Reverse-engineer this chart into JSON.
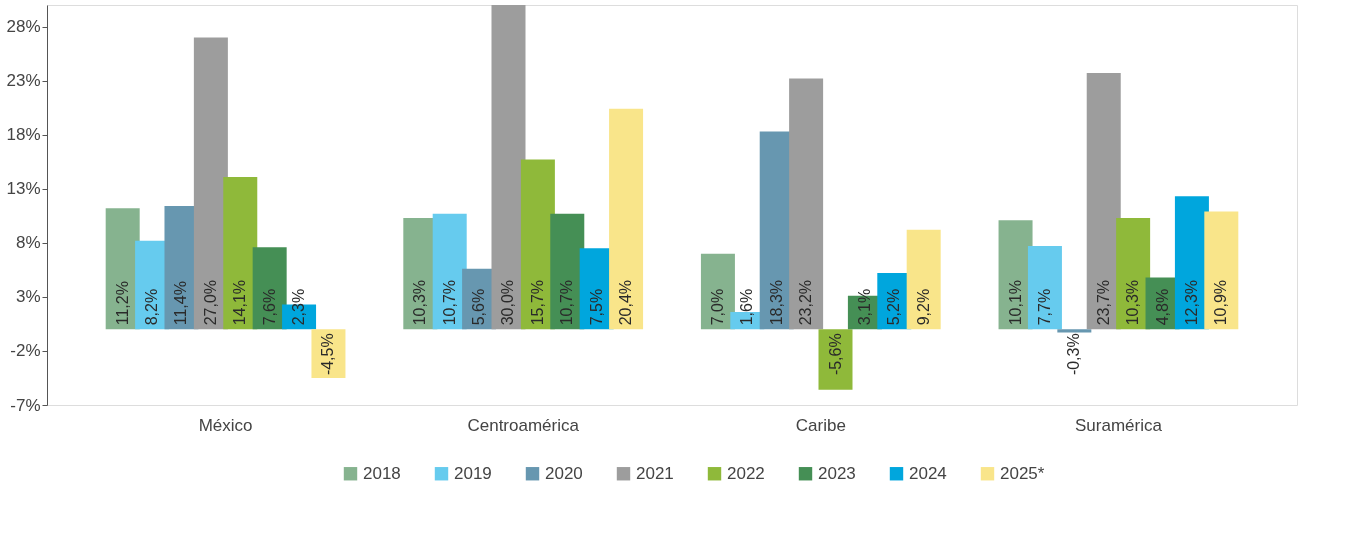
{
  "chart_data": {
    "type": "bar",
    "categories": [
      "México",
      "Centroamérica",
      "Caribe",
      "Suramérica"
    ],
    "series": [
      {
        "name": "2018",
        "color": "#86b38f",
        "values": [
          11.2,
          10.3,
          7.0,
          10.1
        ],
        "value_labels": [
          "11,2%",
          "10,3%",
          "7,0%",
          "10,1%"
        ]
      },
      {
        "name": "2019",
        "color": "#66cbee",
        "values": [
          8.2,
          10.7,
          1.6,
          7.7
        ],
        "value_labels": [
          "8,2%",
          "10,7%",
          "1,6%",
          "7,7%"
        ]
      },
      {
        "name": "2020",
        "color": "#6797b0",
        "values": [
          11.4,
          5.6,
          18.3,
          -0.3
        ],
        "value_labels": [
          "11,4%",
          "5,6%",
          "18,3%",
          "-0,3%"
        ]
      },
      {
        "name": "2021",
        "color": "#9d9d9d",
        "values": [
          27.0,
          30.0,
          23.2,
          23.7
        ],
        "value_labels": [
          "27,0%",
          "30,0%",
          "23,2%",
          "23,7%"
        ]
      },
      {
        "name": "2022",
        "color": "#8fb93a",
        "values": [
          14.1,
          15.7,
          -5.6,
          10.3
        ],
        "value_labels": [
          "14,1%",
          "15,7%",
          "-5,6%",
          "10,3%"
        ]
      },
      {
        "name": "2023",
        "color": "#458f55",
        "values": [
          7.6,
          10.7,
          3.1,
          4.8
        ],
        "value_labels": [
          "7,6%",
          "10,7%",
          "3,1%",
          "4,8%"
        ]
      },
      {
        "name": "2024",
        "color": "#00a6dd",
        "values": [
          2.3,
          7.5,
          5.2,
          12.3
        ],
        "value_labels": [
          "2,3%",
          "7,5%",
          "5,2%",
          "12,3%"
        ]
      },
      {
        "name": "2025*",
        "color": "#f9e58a",
        "values": [
          -4.5,
          20.4,
          9.2,
          10.9
        ],
        "value_labels": [
          "-4,5%",
          "20,4%",
          "9,2%",
          "10,9%"
        ]
      }
    ],
    "ylim": [
      -7,
      30
    ],
    "yticks": [
      {
        "value": -7,
        "label": "-7%"
      },
      {
        "value": -2,
        "label": "-2%"
      },
      {
        "value": 3,
        "label": "3%"
      },
      {
        "value": 8,
        "label": "8%"
      },
      {
        "value": 13,
        "label": "13%"
      },
      {
        "value": 18,
        "label": "18%"
      },
      {
        "value": 23,
        "label": "23%"
      },
      {
        "value": 28,
        "label": "28%"
      }
    ],
    "grid": false,
    "legend": "bottom"
  }
}
